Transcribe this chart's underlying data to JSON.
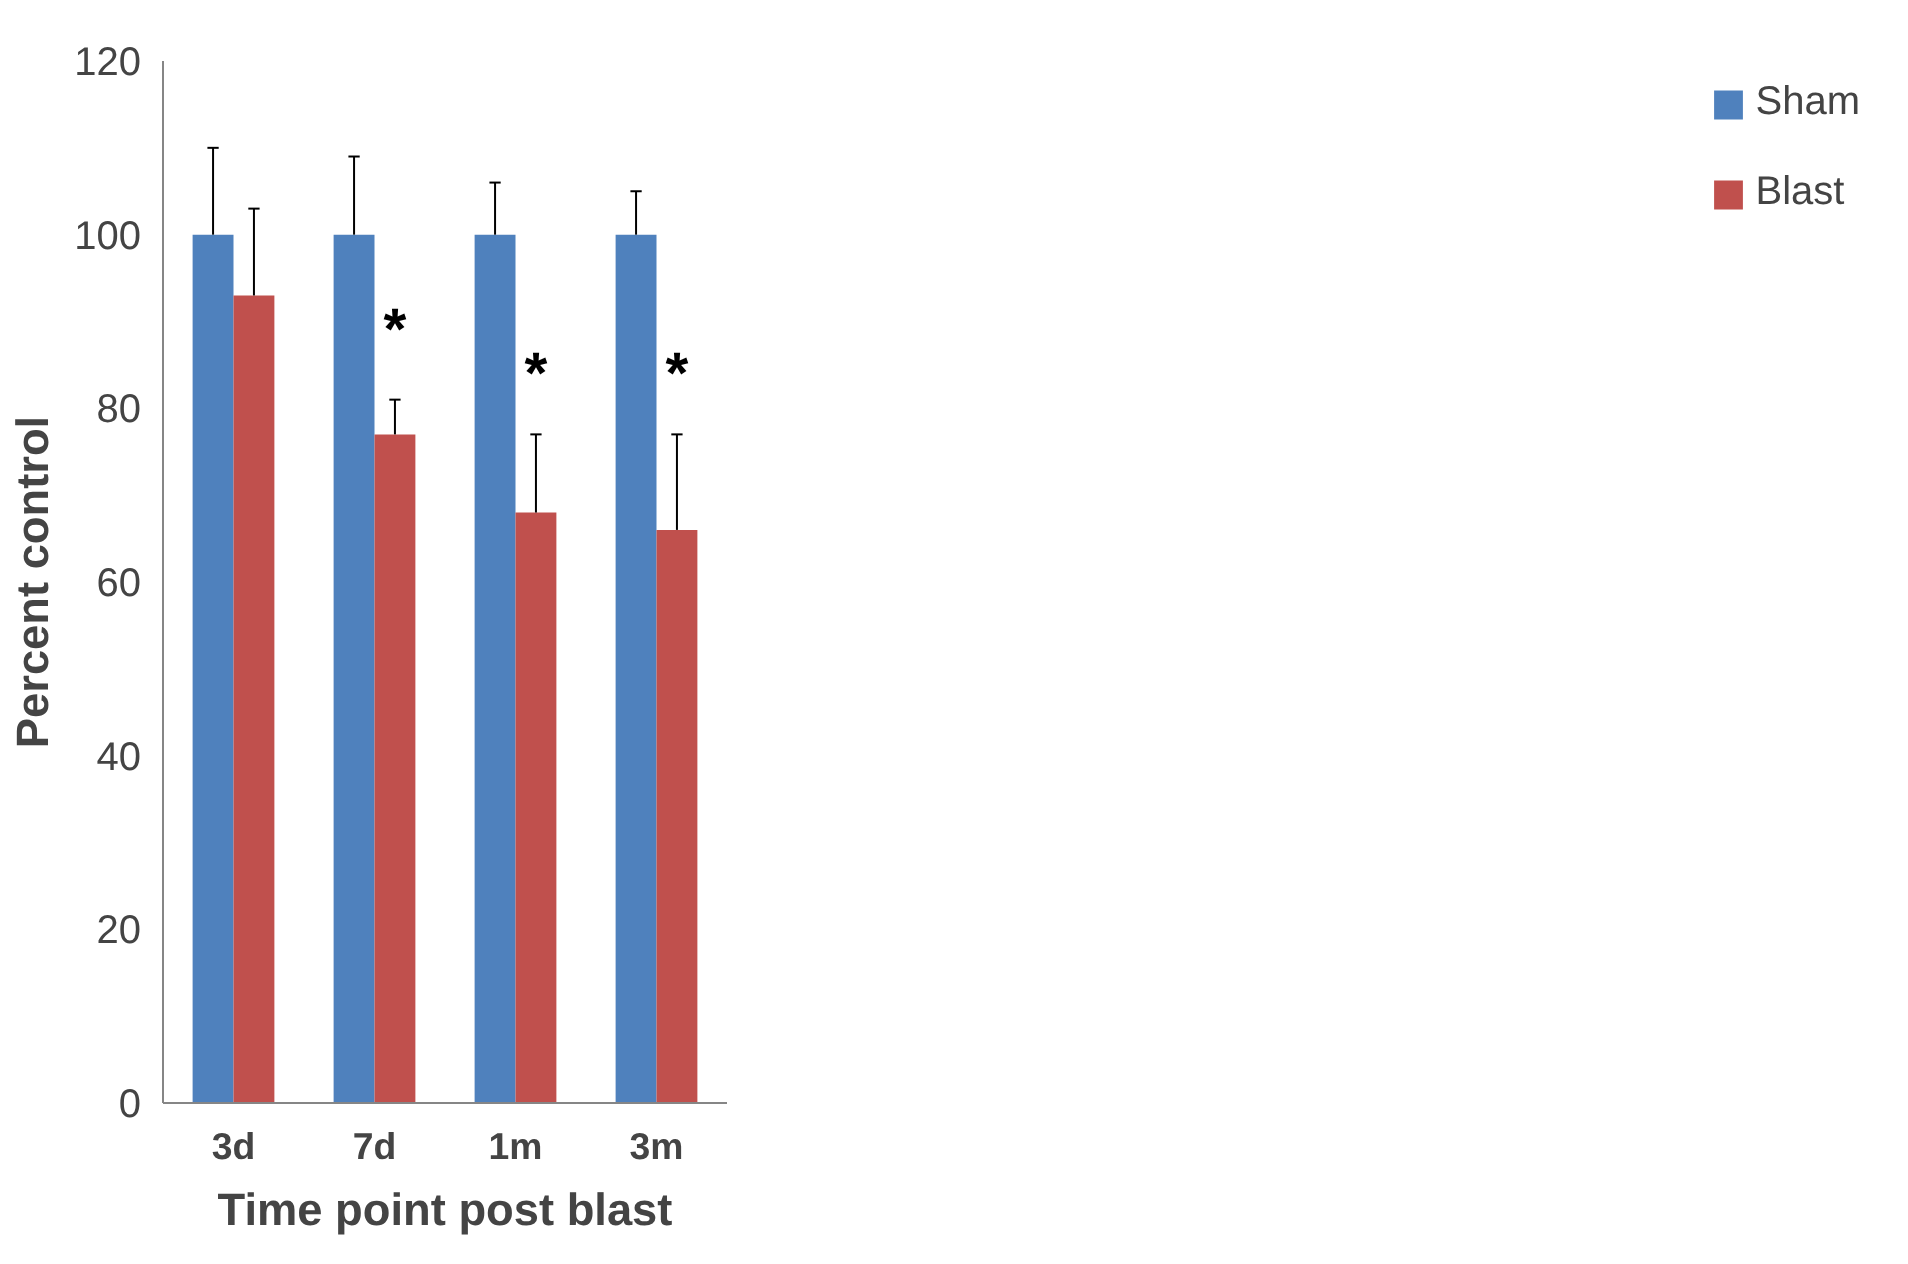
{
  "chart_data": {
    "type": "bar",
    "xlabel": "Time point post blast",
    "ylabel": "Percent control",
    "categories": [
      "3d",
      "7d",
      "1m",
      "3m"
    ],
    "series": [
      {
        "name": "Sham",
        "color": "#4f81bd",
        "values": [
          100,
          100,
          100,
          100
        ],
        "errors": [
          [
            100,
            110
          ],
          [
            100,
            109
          ],
          [
            100,
            106
          ],
          [
            100,
            105
          ]
        ]
      },
      {
        "name": "Blast",
        "color": "#c0504d",
        "values": [
          93,
          77,
          68,
          66
        ],
        "errors": [
          [
            93,
            103
          ],
          [
            77,
            81
          ],
          [
            68,
            77
          ],
          [
            66,
            77
          ]
        ]
      }
    ],
    "ylim": [
      0,
      120
    ],
    "yticks": [
      0,
      20,
      40,
      60,
      80,
      100,
      120
    ],
    "grid": false,
    "legend": "right",
    "annotations": [
      {
        "text": "*",
        "x": "7d",
        "y": 89
      },
      {
        "text": "*",
        "x": "1m",
        "y": 84
      },
      {
        "text": "*",
        "x": "3m",
        "y": 84
      }
    ]
  }
}
